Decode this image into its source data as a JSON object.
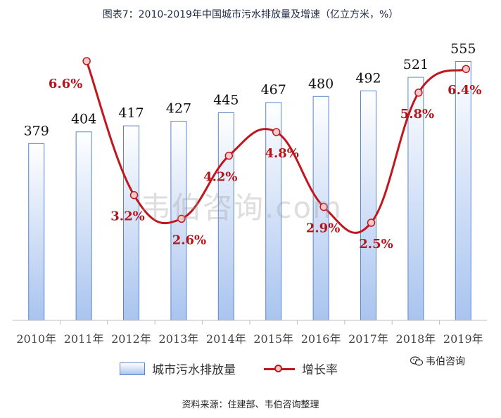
{
  "title": "图表7：2010-2019年中国城市污水排放量及增速（亿立方米，%）",
  "source": "资料来源：住建部、韦伯咨询整理",
  "watermark": "韦伯咨询.com",
  "brand": {
    "label": "韦伯咨询",
    "icon": "wechat-icon"
  },
  "colors": {
    "bar_fill_top": "#ffffff",
    "bar_fill_bottom": "#a9c4ef",
    "bar_stroke": "#5b86c8",
    "line": "#c0171e",
    "marker_fill": "#f7c9c9",
    "axis": "#bfbfbf"
  },
  "chart_data": {
    "type": "bar",
    "title": "图表7：2010-2019年中国城市污水排放量及增速（亿立方米，%）",
    "categories": [
      "2010年",
      "2011年",
      "2012年",
      "2013年",
      "2014年",
      "2015年",
      "2016年",
      "2017年",
      "2018年",
      "2019年"
    ],
    "series": [
      {
        "name": "城市污水排放量",
        "type": "bar",
        "values": [
          379,
          404,
          417,
          427,
          445,
          467,
          480,
          492,
          521,
          555
        ],
        "labels": [
          "379",
          "404",
          "417",
          "427",
          "445",
          "467",
          "480",
          "492",
          "521",
          "555"
        ]
      },
      {
        "name": "增长率",
        "type": "line",
        "values": [
          null,
          6.6,
          3.2,
          2.6,
          4.2,
          4.8,
          2.9,
          2.5,
          5.8,
          6.4
        ],
        "labels": [
          null,
          "6.6%",
          "3.2%",
          "2.6%",
          "4.2%",
          "4.8%",
          "2.9%",
          "2.5%",
          "5.8%",
          "6.4%"
        ]
      }
    ],
    "legend": "bottom",
    "grid": false
  }
}
